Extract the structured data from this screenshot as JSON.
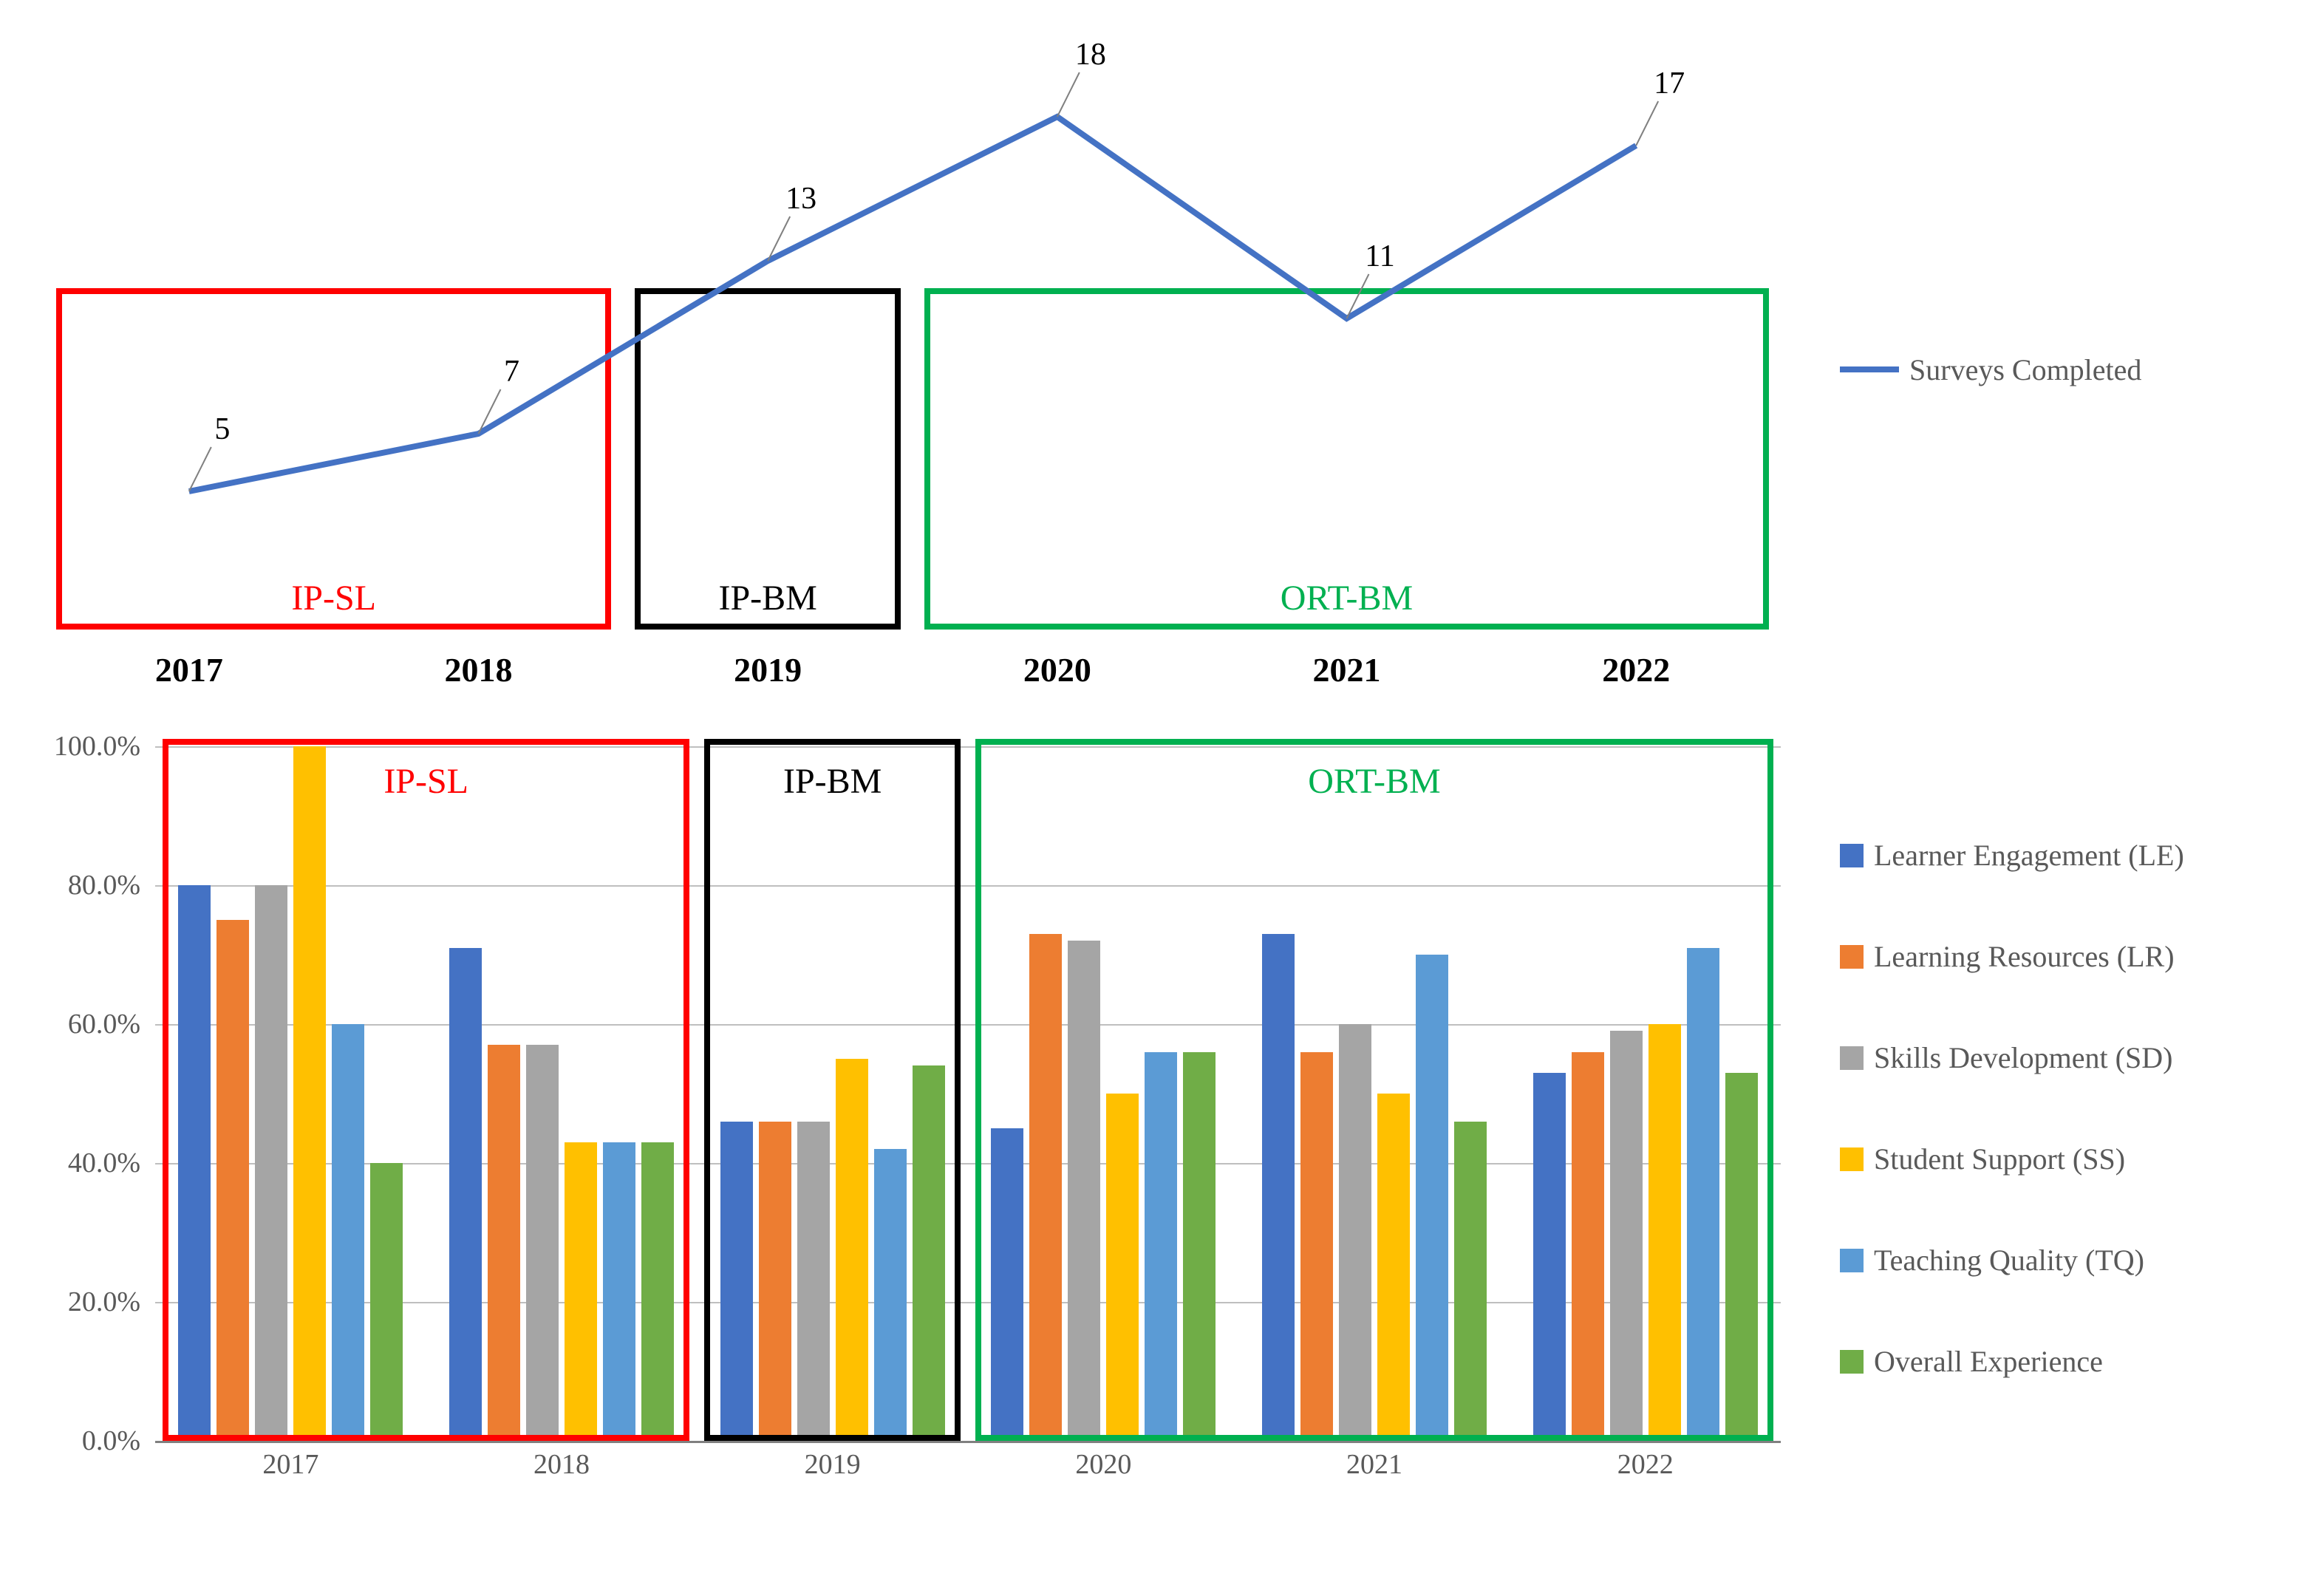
{
  "line_chart": {
    "type": "line",
    "years": [
      "2017",
      "2018",
      "2019",
      "2020",
      "2021",
      "2022"
    ],
    "values": [
      5,
      7,
      13,
      18,
      11,
      17
    ],
    "y_min": 0,
    "y_max": 20,
    "line_color": "#4472c4",
    "line_width": 8,
    "label_fontsize": 42,
    "year_label_fontsize": 46,
    "year_label_weight": "700",
    "legend_label": "Surveys Completed",
    "periods": [
      {
        "label": "IP-SL",
        "color": "#ff0000",
        "border_width": 8,
        "span_years": [
          "2017",
          "2018"
        ]
      },
      {
        "label": "IP-BM",
        "color": "#000000",
        "border_width": 8,
        "span_years": [
          "2019"
        ]
      },
      {
        "label": "ORT-BM",
        "color": "#00b050",
        "border_width": 8,
        "span_years": [
          "2020",
          "2021",
          "2022"
        ]
      }
    ]
  },
  "bar_chart": {
    "type": "grouped-bar",
    "years": [
      "2017",
      "2018",
      "2019",
      "2020",
      "2021",
      "2022"
    ],
    "y_min": 0,
    "y_max": 100,
    "y_tick_step": 20,
    "y_tick_format": "percent-one-decimal",
    "gridline_color": "#bfbfbf",
    "axis_line_color": "#808080",
    "series": [
      {
        "key": "LE",
        "label": "Learner Engagement (LE)",
        "color": "#4472c4"
      },
      {
        "key": "LR",
        "label": "Learning Resources (LR)",
        "color": "#ed7d31"
      },
      {
        "key": "SD",
        "label": "Skills Development (SD)",
        "color": "#a5a5a5"
      },
      {
        "key": "SS",
        "label": "Student Support (SS)",
        "color": "#ffc000"
      },
      {
        "key": "TQ",
        "label": "Teaching Quality (TQ)",
        "color": "#5b9bd5"
      },
      {
        "key": "OE",
        "label": "Overall Experience",
        "color": "#70ad47"
      }
    ],
    "data": {
      "2017": {
        "LE": 80,
        "LR": 75,
        "SD": 80,
        "SS": 100,
        "TQ": 60,
        "OE": 40
      },
      "2018": {
        "LE": 71,
        "LR": 57,
        "SD": 57,
        "SS": 43,
        "TQ": 43,
        "OE": 43
      },
      "2019": {
        "LE": 46,
        "LR": 46,
        "SD": 46,
        "SS": 55,
        "TQ": 42,
        "OE": 54
      },
      "2020": {
        "LE": 45,
        "LR": 73,
        "SD": 72,
        "SS": 50,
        "TQ": 56,
        "OE": 56
      },
      "2021": {
        "LE": 73,
        "LR": 56,
        "SD": 60,
        "SS": 50,
        "TQ": 70,
        "OE": 46
      },
      "2022": {
        "LE": 53,
        "LR": 56,
        "SD": 59,
        "SS": 60,
        "TQ": 71,
        "OE": 53
      }
    },
    "periods": [
      {
        "label": "IP-SL",
        "color": "#ff0000",
        "border_width": 8,
        "span_years": [
          "2017",
          "2018"
        ]
      },
      {
        "label": "IP-BM",
        "color": "#000000",
        "border_width": 8,
        "span_years": [
          "2019"
        ]
      },
      {
        "label": "ORT-BM",
        "color": "#00b050",
        "border_width": 8,
        "span_years": [
          "2020",
          "2021",
          "2022"
        ]
      }
    ]
  },
  "legend_fontsize": 40,
  "legend_text_color": "#595959",
  "y_tick_labels": [
    "0.0%",
    "20.0%",
    "40.0%",
    "60.0%",
    "80.0%",
    "100.0%"
  ]
}
